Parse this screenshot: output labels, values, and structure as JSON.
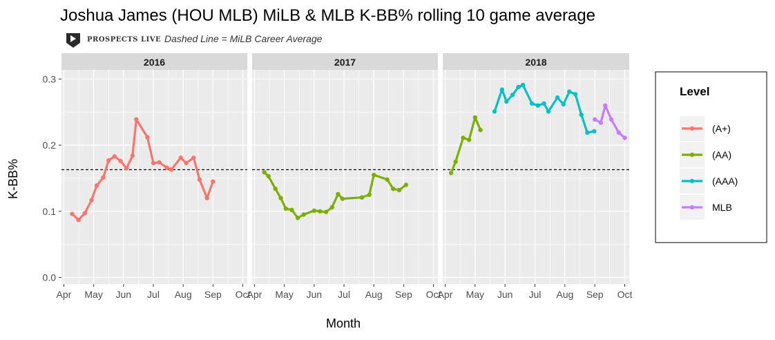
{
  "chart_data": {
    "type": "line",
    "title": "Joshua James (HOU MLB) MiLB & MLB K-BB% rolling 10 game average",
    "subtitle": "Dashed Line = MiLB Career Average",
    "logo_text": "PROSPECTS LIVE",
    "xlabel": "Month",
    "ylabel": "K-BB%",
    "ylim": [
      0,
      0.3
    ],
    "y_ticks": [
      0.0,
      0.1,
      0.2,
      0.3
    ],
    "y_tick_labels": [
      "0.0",
      "0.1",
      "0.2",
      "0.3"
    ],
    "x_tick_labels": [
      "Apr",
      "May",
      "Jun",
      "Jul",
      "Aug",
      "Sep",
      "Oct"
    ],
    "x_unit": "month (1 = Apr 1, 7 = Oct 1)",
    "reference_line": {
      "value": 0.163,
      "style": "dashed",
      "meaning": "MiLB Career Average"
    },
    "legend": {
      "title": "Level",
      "position": "right"
    },
    "grid": true,
    "levels": [
      {
        "name": "(A+)",
        "color": "#F8766D"
      },
      {
        "name": "(AA)",
        "color": "#7CAE00"
      },
      {
        "name": "(AAA)",
        "color": "#00BFC4"
      },
      {
        "name": "MLB",
        "color": "#C77CFF"
      }
    ],
    "panels": [
      {
        "label": "2016",
        "series": [
          {
            "name": "(A+)",
            "points": [
              [
                1.28,
                0.096
              ],
              [
                1.49,
                0.087
              ],
              [
                1.7,
                0.097
              ],
              [
                1.93,
                0.117
              ],
              [
                2.1,
                0.139
              ],
              [
                2.32,
                0.151
              ],
              [
                2.5,
                0.177
              ],
              [
                2.7,
                0.183
              ],
              [
                2.9,
                0.176
              ],
              [
                3.1,
                0.165
              ],
              [
                3.3,
                0.184
              ],
              [
                3.43,
                0.239
              ],
              [
                3.8,
                0.212
              ],
              [
                4.0,
                0.173
              ],
              [
                4.2,
                0.174
              ],
              [
                4.45,
                0.166
              ],
              [
                4.6,
                0.163
              ],
              [
                4.92,
                0.181
              ],
              [
                5.1,
                0.173
              ],
              [
                5.35,
                0.181
              ],
              [
                5.55,
                0.148
              ],
              [
                5.8,
                0.12
              ],
              [
                6.0,
                0.145
              ]
            ]
          }
        ]
      },
      {
        "label": "2017",
        "series": [
          {
            "name": "(AA)",
            "points": [
              [
                1.33,
                0.159
              ],
              [
                1.47,
                0.153
              ],
              [
                1.7,
                0.134
              ],
              [
                1.88,
                0.12
              ],
              [
                2.05,
                0.104
              ],
              [
                2.25,
                0.102
              ],
              [
                2.45,
                0.09
              ],
              [
                2.65,
                0.095
              ],
              [
                3.0,
                0.101
              ],
              [
                3.2,
                0.1
              ],
              [
                3.4,
                0.099
              ],
              [
                3.6,
                0.106
              ],
              [
                3.8,
                0.126
              ],
              [
                3.95,
                0.119
              ],
              [
                4.6,
                0.121
              ],
              [
                4.85,
                0.125
              ],
              [
                5.0,
                0.155
              ],
              [
                5.45,
                0.148
              ],
              [
                5.65,
                0.134
              ],
              [
                5.85,
                0.132
              ],
              [
                6.08,
                0.14
              ]
            ]
          }
        ]
      },
      {
        "label": "2018",
        "series": [
          {
            "name": "(AA)",
            "points": [
              [
                1.2,
                0.158
              ],
              [
                1.35,
                0.175
              ],
              [
                1.6,
                0.211
              ],
              [
                1.8,
                0.208
              ],
              [
                2.0,
                0.242
              ],
              [
                2.18,
                0.223
              ]
            ]
          },
          {
            "name": "(AAA)",
            "points": [
              [
                2.65,
                0.251
              ],
              [
                2.9,
                0.284
              ],
              [
                3.05,
                0.266
              ],
              [
                3.25,
                0.276
              ],
              [
                3.45,
                0.288
              ],
              [
                3.6,
                0.291
              ],
              [
                3.9,
                0.263
              ],
              [
                4.1,
                0.26
              ],
              [
                4.3,
                0.263
              ],
              [
                4.45,
                0.251
              ],
              [
                4.75,
                0.272
              ],
              [
                4.95,
                0.262
              ],
              [
                5.15,
                0.281
              ],
              [
                5.35,
                0.277
              ],
              [
                5.55,
                0.246
              ],
              [
                5.75,
                0.219
              ],
              [
                5.98,
                0.221
              ]
            ]
          },
          {
            "name": "MLB",
            "points": [
              [
                6.0,
                0.239
              ],
              [
                6.2,
                0.234
              ],
              [
                6.35,
                0.26
              ],
              [
                6.55,
                0.239
              ],
              [
                6.8,
                0.219
              ],
              [
                7.0,
                0.211
              ]
            ]
          }
        ]
      }
    ]
  }
}
